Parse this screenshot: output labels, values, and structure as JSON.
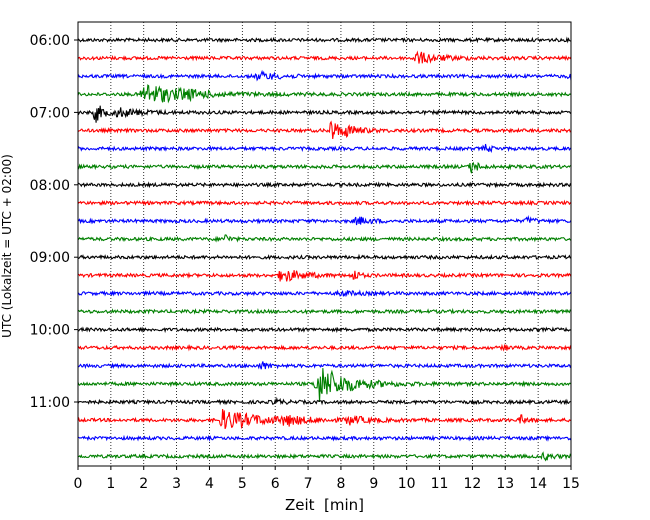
{
  "chart_data": {
    "type": "line",
    "title": "",
    "xlabel": "Zeit  [min]",
    "ylabel": "UTC (Lokalzeit = UTC + 02:00)",
    "xlim": [
      0,
      15
    ],
    "x_ticks": [
      "0",
      "1",
      "2",
      "3",
      "4",
      "5",
      "6",
      "7",
      "8",
      "9",
      "10",
      "11",
      "12",
      "13",
      "14",
      "15"
    ],
    "y_tick_labels": [
      "06:00",
      "07:00",
      "08:00",
      "09:00",
      "10:00",
      "11:00"
    ],
    "grid": "vertical dotted lines at each minute",
    "trace_interval_minutes": 15,
    "colors_cycle": [
      "#000000",
      "#ff0000",
      "#0000ff",
      "#008000"
    ],
    "traces": [
      {
        "start": "06:00",
        "color": "#000000",
        "events": []
      },
      {
        "start": "06:15",
        "color": "#ff0000",
        "events": [
          {
            "t": 10.3,
            "amp": 0.9,
            "dur": 1.4
          }
        ]
      },
      {
        "start": "06:30",
        "color": "#0000ff",
        "events": [
          {
            "t": 5.5,
            "amp": 0.6,
            "dur": 1.2
          },
          {
            "t": 15.0,
            "amp": 0.5,
            "dur": 0.4
          }
        ]
      },
      {
        "start": "06:45",
        "color": "#008000",
        "events": [
          {
            "t": 2.0,
            "amp": 1.7,
            "dur": 2.5
          },
          {
            "t": 3.2,
            "amp": 0.4,
            "dur": 0.8
          }
        ]
      },
      {
        "start": "07:00",
        "color": "#000000",
        "events": [
          {
            "t": 0.55,
            "amp": 1.4,
            "dur": 0.5
          },
          {
            "t": 1.2,
            "amp": 0.6,
            "dur": 1.5
          }
        ]
      },
      {
        "start": "07:15",
        "color": "#ff0000",
        "events": [
          {
            "t": 7.7,
            "amp": 1.5,
            "dur": 0.8
          },
          {
            "t": 8.2,
            "amp": 0.5,
            "dur": 0.8
          }
        ]
      },
      {
        "start": "07:30",
        "color": "#0000ff",
        "events": [
          {
            "t": 12.4,
            "amp": 0.5,
            "dur": 0.4
          }
        ]
      },
      {
        "start": "07:45",
        "color": "#008000",
        "events": [
          {
            "t": 12.0,
            "amp": 1.0,
            "dur": 0.4
          }
        ]
      },
      {
        "start": "08:00",
        "color": "#000000",
        "events": []
      },
      {
        "start": "08:15",
        "color": "#ff0000",
        "events": []
      },
      {
        "start": "08:30",
        "color": "#0000ff",
        "events": [
          {
            "t": 8.5,
            "amp": 0.6,
            "dur": 0.8
          },
          {
            "t": 13.7,
            "amp": 0.5,
            "dur": 0.4
          }
        ]
      },
      {
        "start": "08:45",
        "color": "#008000",
        "events": [
          {
            "t": 4.5,
            "amp": 0.7,
            "dur": 0.25
          }
        ]
      },
      {
        "start": "09:00",
        "color": "#000000",
        "events": []
      },
      {
        "start": "09:15",
        "color": "#ff0000",
        "events": [
          {
            "t": 6.2,
            "amp": 1.1,
            "dur": 1.2
          },
          {
            "t": 8.4,
            "amp": 0.8,
            "dur": 0.3
          }
        ]
      },
      {
        "start": "09:30",
        "color": "#0000ff",
        "events": [
          {
            "t": 8.0,
            "amp": 0.4,
            "dur": 0.8
          }
        ]
      },
      {
        "start": "09:45",
        "color": "#008000",
        "events": []
      },
      {
        "start": "10:00",
        "color": "#000000",
        "events": []
      },
      {
        "start": "10:15",
        "color": "#ff0000",
        "events": [
          {
            "t": 13.0,
            "amp": 0.4,
            "dur": 0.2
          }
        ]
      },
      {
        "start": "10:30",
        "color": "#0000ff",
        "events": [
          {
            "t": 5.6,
            "amp": 0.6,
            "dur": 0.4
          }
        ]
      },
      {
        "start": "10:45",
        "color": "#008000",
        "events": [
          {
            "t": 7.3,
            "amp": 3.0,
            "dur": 1.8
          }
        ]
      },
      {
        "start": "11:00",
        "color": "#000000",
        "events": [
          {
            "t": 6.0,
            "amp": 0.4,
            "dur": 0.5
          }
        ]
      },
      {
        "start": "11:15",
        "color": "#ff0000",
        "events": [
          {
            "t": 4.4,
            "amp": 1.5,
            "dur": 2.4
          },
          {
            "t": 6.3,
            "amp": 0.7,
            "dur": 1.0
          },
          {
            "t": 8.2,
            "amp": 0.6,
            "dur": 1.2
          },
          {
            "t": 13.5,
            "amp": 0.6,
            "dur": 0.4
          }
        ]
      },
      {
        "start": "11:30",
        "color": "#0000ff",
        "events": []
      },
      {
        "start": "11:45",
        "color": "#008000",
        "events": [
          {
            "t": 14.2,
            "amp": 0.5,
            "dur": 0.6
          }
        ]
      }
    ]
  }
}
